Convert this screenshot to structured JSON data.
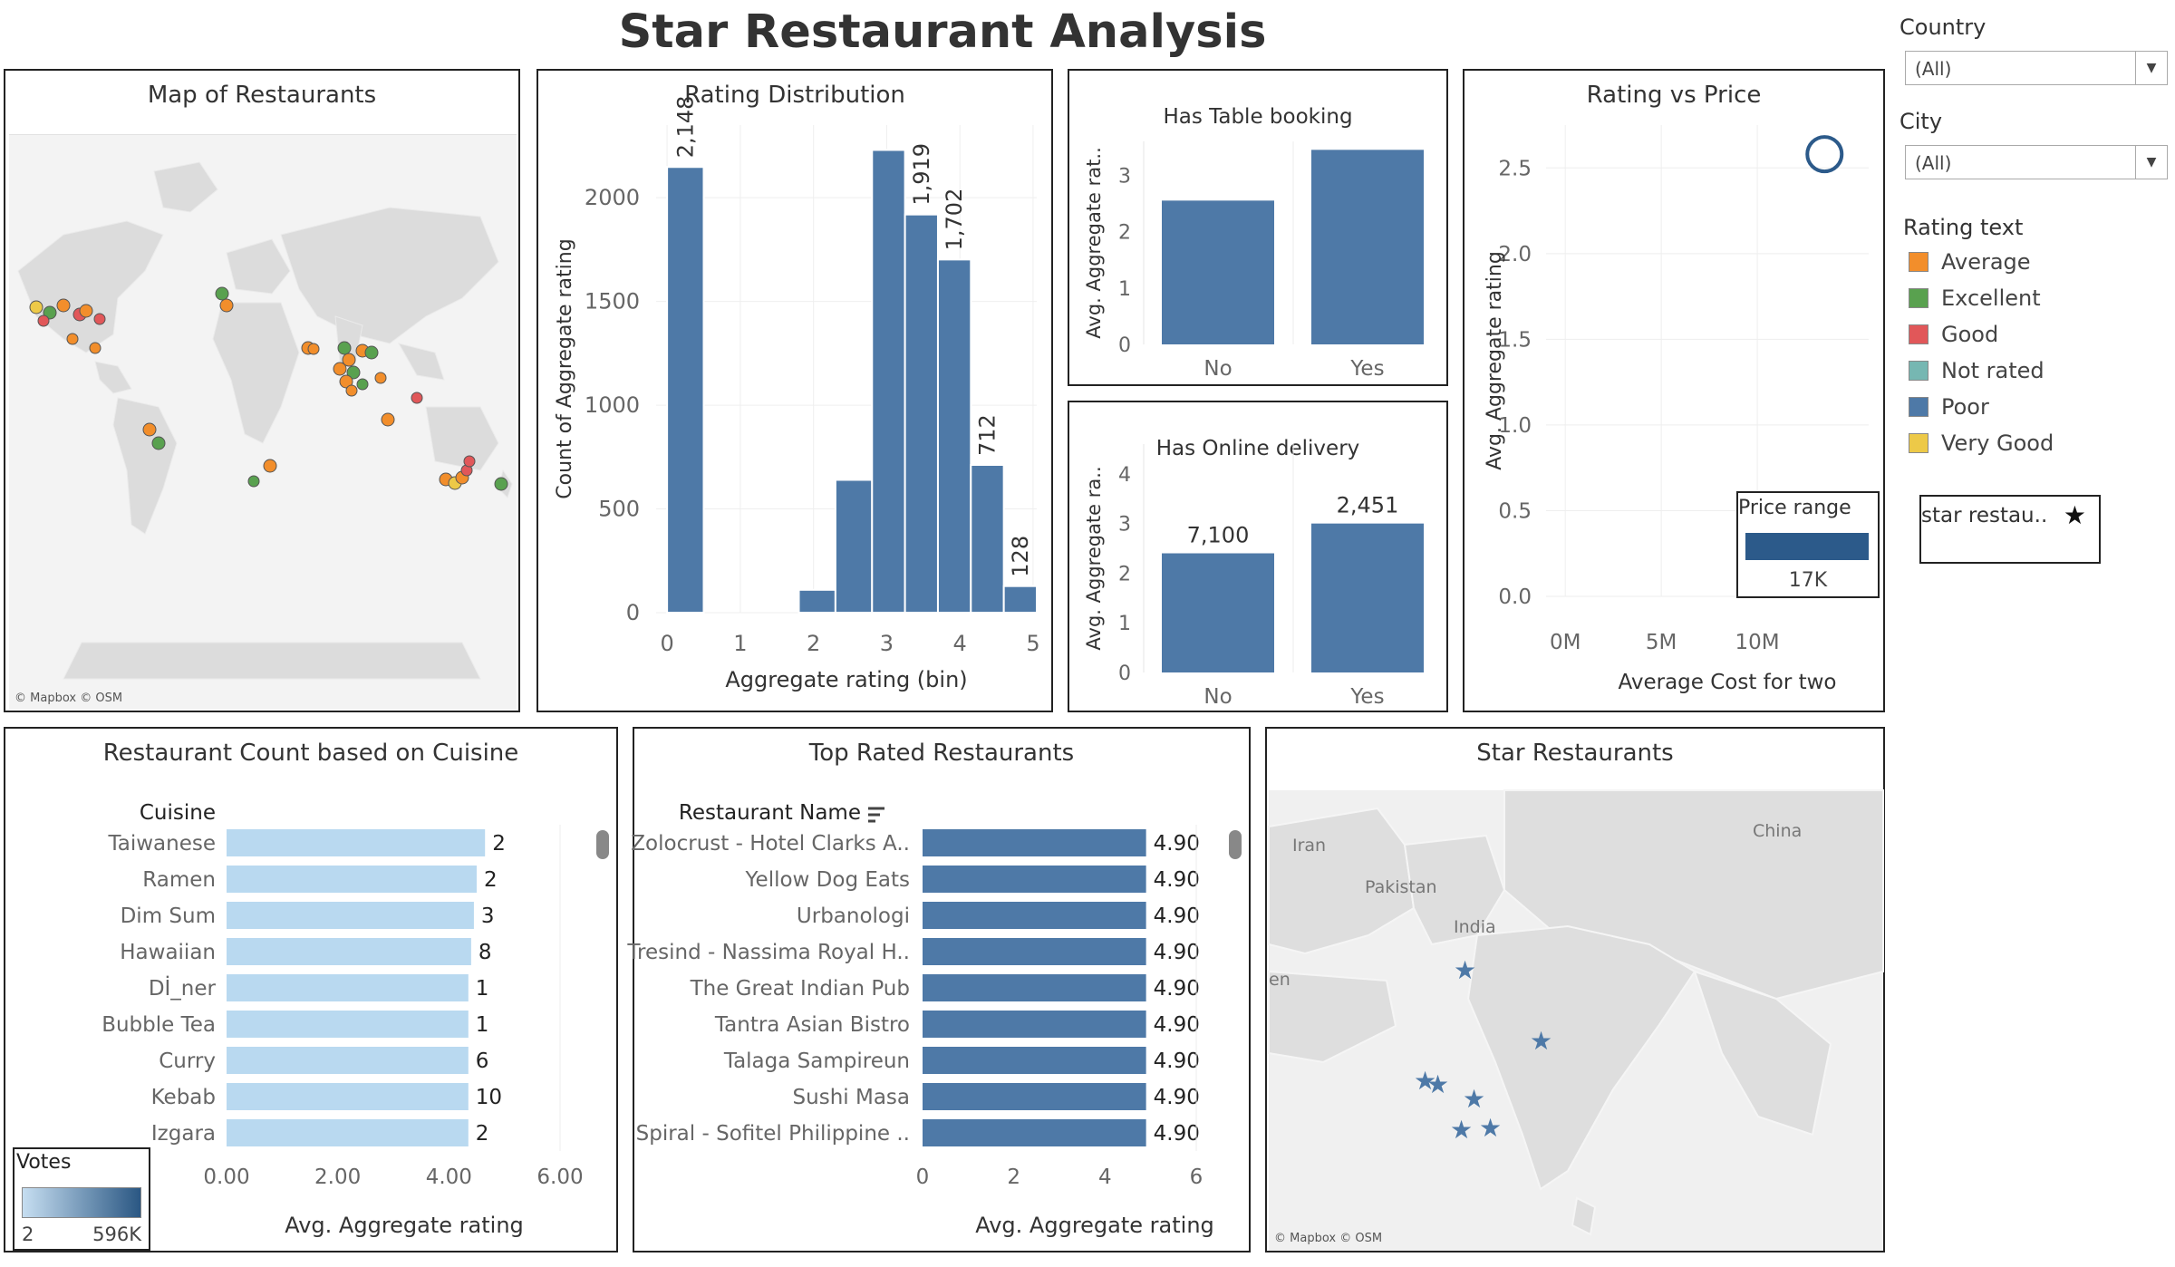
{
  "dashboard_title": "Star Restaurant Analysis",
  "filters": {
    "country_label": "Country",
    "country_value": "(All)",
    "city_label": "City",
    "city_value": "(All)"
  },
  "rating_legend": {
    "title": "Rating text",
    "items": [
      {
        "label": "Average",
        "color": "#f28e2b"
      },
      {
        "label": "Excellent",
        "color": "#59a14f"
      },
      {
        "label": "Good",
        "color": "#e15759"
      },
      {
        "label": "Not rated",
        "color": "#76b7b2"
      },
      {
        "label": "Poor",
        "color": "#4e79a7"
      },
      {
        "label": "Very Good",
        "color": "#edc948"
      }
    ]
  },
  "star_legend": {
    "label": "star restau..",
    "icon": "star-icon"
  },
  "map_restaurants": {
    "title": "Map of Restaurants",
    "credit": "© Mapbox © OSM"
  },
  "rating_distribution": {
    "title": "Rating Distribution"
  },
  "table_booking": {
    "title": "Has Table booking"
  },
  "online_delivery": {
    "title": "Has Online delivery"
  },
  "rating_vs_price": {
    "title": "Rating vs Price",
    "size_legend_title": "Price range",
    "size_legend_value": "17K"
  },
  "cuisine_count": {
    "title": "Restaurant Count based on Cuisine",
    "column_header": "Cuisine",
    "votes_legend_title": "Votes",
    "votes_min": "2",
    "votes_max": "596K"
  },
  "top_rated": {
    "title": "Top Rated Restaurants",
    "column_header": "Restaurant Name",
    "sort_icon": "sort-descending-icon"
  },
  "star_restaurants": {
    "title": "Star Restaurants",
    "credit": "© Mapbox © OSM",
    "place_labels": [
      "Iran",
      "China",
      "Pakistan",
      "India",
      "en"
    ]
  },
  "chart_data": [
    {
      "type": "bar",
      "title": "Rating Distribution",
      "xlabel": "Aggregate rating (bin)",
      "ylabel": "Count of Aggregate rating",
      "bins": [
        {
          "x0": 0.0,
          "x1": 0.5,
          "value": 2148,
          "label": "2,148"
        },
        {
          "x0": 1.8,
          "x1": 2.3,
          "value": 110,
          "label": ""
        },
        {
          "x0": 2.3,
          "x1": 2.8,
          "value": 640,
          "label": ""
        },
        {
          "x0": 2.8,
          "x1": 3.25,
          "value": 2230,
          "label": ""
        },
        {
          "x0": 3.25,
          "x1": 3.7,
          "value": 1919,
          "label": "1,919"
        },
        {
          "x0": 3.7,
          "x1": 4.15,
          "value": 1702,
          "label": "1,702"
        },
        {
          "x0": 4.15,
          "x1": 4.6,
          "value": 712,
          "label": "712"
        },
        {
          "x0": 4.6,
          "x1": 5.05,
          "value": 128,
          "label": "128"
        }
      ],
      "xticks": [
        "0",
        "1",
        "2",
        "3",
        "4",
        "5"
      ],
      "yticks": [
        "0",
        "500",
        "1000",
        "1500",
        "2000"
      ],
      "xlim": [
        -0.15,
        5.05
      ],
      "ylim": [
        0,
        2350
      ]
    },
    {
      "type": "bar",
      "title": "Has Table booking",
      "categories": [
        "No",
        "Yes"
      ],
      "values": [
        2.55,
        3.45
      ],
      "ylabel": "Avg. Aggregate rat..",
      "yticks": [
        "0",
        "1",
        "2",
        "3"
      ],
      "ylim": [
        0,
        3.6
      ]
    },
    {
      "type": "bar",
      "title": "Has Online delivery",
      "categories": [
        "No",
        "Yes"
      ],
      "values": [
        2.4,
        3.0
      ],
      "data_labels": [
        "7,100",
        "2,451"
      ],
      "ylabel": "Avg. Aggregate ra..",
      "yticks": [
        "0",
        "1",
        "2",
        "3",
        "4"
      ],
      "ylim": [
        0,
        4.6
      ]
    },
    {
      "type": "scatter",
      "title": "Rating vs Price",
      "xlabel": "Average Cost for two",
      "ylabel": "Avg. Aggregate rating",
      "points": [
        {
          "x": 13500000,
          "y": 2.58
        }
      ],
      "xticks": [
        "0M",
        "5M",
        "10M"
      ],
      "yticks": [
        "0.0",
        "0.5",
        "1.0",
        "1.5",
        "2.0",
        "2.5"
      ],
      "xlim": [
        -1000000,
        15800000
      ],
      "ylim": [
        0,
        2.75
      ]
    },
    {
      "type": "bar",
      "orientation": "horizontal",
      "title": "Restaurant Count based on Cuisine",
      "xlabel": "Avg. Aggregate rating",
      "categories": [
        "Taiwanese",
        "Ramen",
        "Dim Sum",
        "Hawaiian",
        "Dİ_ner",
        "Bubble Tea",
        "Curry",
        "Kebab",
        "Izgara"
      ],
      "values": [
        4.65,
        4.5,
        4.45,
        4.4,
        4.35,
        4.35,
        4.35,
        4.35,
        4.35
      ],
      "data_labels": [
        "2",
        "2",
        "3",
        "8",
        "1",
        "1",
        "6",
        "10",
        "2"
      ],
      "xticks": [
        "0.00",
        "2.00",
        "4.00",
        "6.00"
      ],
      "xlim": [
        0,
        6
      ]
    },
    {
      "type": "bar",
      "orientation": "horizontal",
      "title": "Top Rated Restaurants",
      "xlabel": "Avg. Aggregate rating",
      "categories": [
        "Zolocrust - Hotel Clarks A..",
        "Yellow Dog Eats",
        "Urbanologi",
        "Tresind - Nassima Royal H..",
        "The Great Indian Pub",
        "Tantra Asian Bistro",
        "Talaga Sampireun",
        "Sushi Masa",
        "Spiral - Sofitel Philippine .."
      ],
      "values": [
        4.9,
        4.9,
        4.9,
        4.9,
        4.9,
        4.9,
        4.9,
        4.9,
        4.9
      ],
      "data_labels": [
        "4.90",
        "4.90",
        "4.90",
        "4.90",
        "4.90",
        "4.90",
        "4.90",
        "4.90",
        "4.90"
      ],
      "xticks": [
        "0",
        "2",
        "4",
        "6"
      ],
      "xlim": [
        0,
        6
      ]
    }
  ]
}
